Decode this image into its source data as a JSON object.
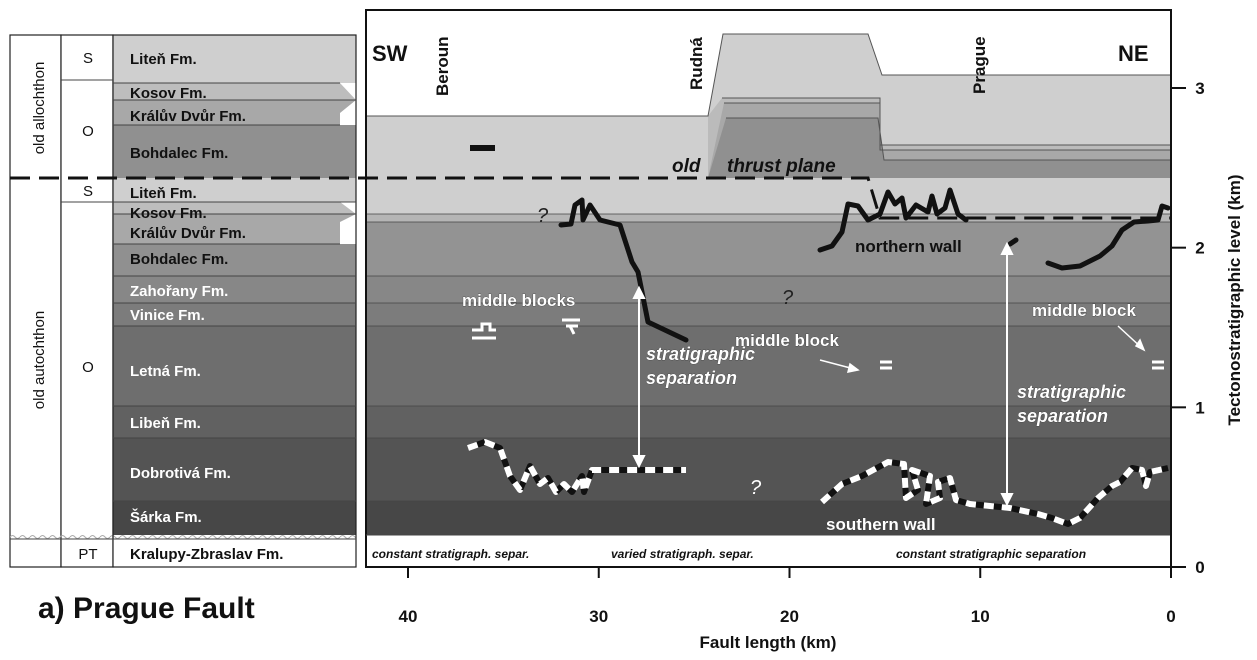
{
  "column": {
    "groups": [
      {
        "key": "allo",
        "label": "old allochthon"
      },
      {
        "key": "auto",
        "label": "old autochthon"
      }
    ],
    "ages": [
      {
        "key": "s1",
        "label": "S"
      },
      {
        "key": "o1",
        "label": "O"
      },
      {
        "key": "s2",
        "label": "S"
      },
      {
        "key": "o2",
        "label": "O"
      },
      {
        "key": "pt",
        "label": "PT"
      }
    ],
    "formations": [
      {
        "key": "liten_a",
        "label": "Liteň Fm."
      },
      {
        "key": "kosov_a",
        "label": "Kosov Fm."
      },
      {
        "key": "kraluv_a",
        "label": "Králův Dvůr Fm."
      },
      {
        "key": "bohdalec_a",
        "label": "Bohdalec Fm."
      },
      {
        "key": "liten_b",
        "label": "Liteň Fm."
      },
      {
        "key": "kosov_b",
        "label": "Kosov Fm."
      },
      {
        "key": "kraluv_b",
        "label": "Králův Dvůr Fm."
      },
      {
        "key": "bohdalec_b",
        "label": "Bohdalec Fm."
      },
      {
        "key": "zahorany",
        "label": "Zahořany Fm."
      },
      {
        "key": "vinice",
        "label": "Vinice Fm."
      },
      {
        "key": "letna",
        "label": "Letná Fm."
      },
      {
        "key": "liben",
        "label": "Libeň Fm."
      },
      {
        "key": "dobrotiva",
        "label": "Dobrotivá Fm."
      },
      {
        "key": "sarka",
        "label": "Šárka Fm."
      },
      {
        "key": "kralupy",
        "label": "Kralupy-Zbraslav Fm."
      }
    ]
  },
  "section": {
    "directions": {
      "left": "SW",
      "right": "NE"
    },
    "localities": [
      {
        "key": "beroun",
        "label": "Beroun",
        "km": 40.5
      },
      {
        "key": "rudna",
        "label": "Rudná",
        "km": 24.5
      },
      {
        "key": "prague",
        "label": "Prague",
        "km": 10.0
      }
    ],
    "annotations": {
      "old": "old",
      "thrust_plane": "thrust plane",
      "middle_blocks": "middle blocks",
      "middle_block_1": "middle block",
      "middle_block_2": "middle block",
      "northern_wall": "northern wall",
      "southern_wall": "southern wall",
      "strat_sep_1": [
        "stratigraphic",
        "separation"
      ],
      "strat_sep_2": [
        "stratigraphic",
        "separation"
      ],
      "question": "?"
    },
    "bottom_notes": [
      {
        "key": "c1",
        "label": "constant stratigraph. separ."
      },
      {
        "key": "c2",
        "label": "varied stratigraph. separ."
      },
      {
        "key": "c3",
        "label": "constant stratigraphic separation"
      }
    ]
  },
  "x_axis": {
    "title": "Fault length (km)",
    "ticks": [
      40,
      30,
      20,
      10,
      0
    ],
    "range_km": [
      43,
      0
    ]
  },
  "y_axis": {
    "title": "Tectonostratigraphic level (km)",
    "ticks": [
      0,
      1,
      2,
      3
    ],
    "range_km": [
      0,
      3.5
    ]
  },
  "panel_label": "a)  Prague Fault"
}
